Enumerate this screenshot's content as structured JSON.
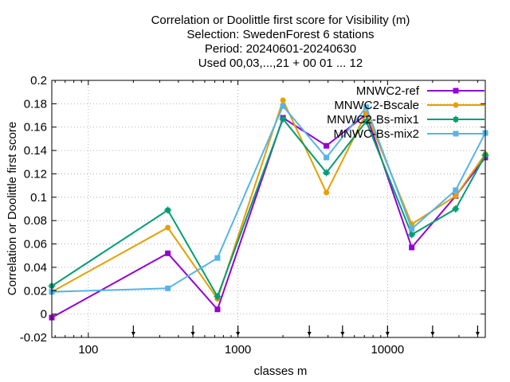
{
  "chart_data": {
    "type": "line",
    "title_lines": [
      "Correlation or Doolittle first score  for Visibility (m)",
      "Selection: SwedenForest      6 stations",
      "Period: 20240601-20240630",
      "Used 00,03,...,21 + 00 01 ... 12"
    ],
    "xlabel": "classes m",
    "ylabel": "Correlation or Doolittle first score",
    "x_scale": "log",
    "xlim": [
      57,
      45000
    ],
    "ylim": [
      -0.02,
      0.2
    ],
    "x_ticks": [
      100,
      1000,
      10000
    ],
    "x_tick_labels": [
      "100",
      "1000",
      "10000"
    ],
    "y_ticks": [
      -0.02,
      0,
      0.02,
      0.04,
      0.06,
      0.08,
      0.1,
      0.12,
      0.14,
      0.16,
      0.18,
      0.2
    ],
    "y_tick_labels": [
      "-0.02",
      "0",
      "0.02",
      "0.04",
      "0.06",
      "0.08",
      "0.1",
      "0.12",
      "0.14",
      "0.16",
      "0.18",
      "0.2"
    ],
    "grid": true,
    "legend_position": "top-right",
    "class_markers": [
      200,
      500,
      1000,
      3000,
      5000,
      10000,
      20000,
      40000
    ],
    "x": [
      57,
      340,
      730,
      2000,
      3900,
      7200,
      14500,
      28500,
      45000
    ],
    "series": [
      {
        "name": "MNWC2-ref",
        "color": "#9400d3",
        "marker": "square",
        "values": [
          -0.003,
          0.052,
          0.004,
          0.168,
          0.144,
          0.171,
          0.057,
          0.101,
          0.134
        ]
      },
      {
        "name": "MNWC2-Bscale",
        "color": "#e69f00",
        "marker": "circle",
        "values": [
          0.019,
          0.074,
          0.013,
          0.183,
          0.104,
          0.172,
          0.077,
          0.101,
          0.137
        ]
      },
      {
        "name": "MNWC2-Bs-mix1",
        "color": "#009e73",
        "marker": "star",
        "values": [
          0.024,
          0.089,
          0.015,
          0.167,
          0.121,
          0.165,
          0.068,
          0.09,
          0.136
        ]
      },
      {
        "name": "MNWC-Bs-mix2",
        "color": "#56b4e9",
        "marker": "square",
        "values": [
          0.019,
          0.022,
          0.048,
          0.178,
          0.134,
          0.177,
          0.073,
          0.106,
          0.155
        ]
      }
    ]
  }
}
